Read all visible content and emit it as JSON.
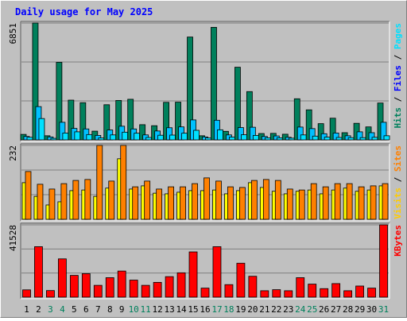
{
  "chart_data": {
    "type": "bar",
    "title": "Daily usage for May 2025",
    "categories": [
      "1",
      "2",
      "3",
      "4",
      "5",
      "6",
      "7",
      "8",
      "9",
      "10",
      "11",
      "12",
      "13",
      "14",
      "15",
      "16",
      "17",
      "18",
      "19",
      "20",
      "21",
      "22",
      "23",
      "24",
      "25",
      "26",
      "27",
      "28",
      "29",
      "30",
      "31"
    ],
    "weekend_days": [
      "3",
      "4",
      "10",
      "11",
      "17",
      "18",
      "24",
      "25",
      "31"
    ],
    "panels": [
      {
        "id": "top",
        "max_label": "6851",
        "ylim": [
          0,
          6851
        ],
        "axis_labels": [
          {
            "text": "Hits",
            "color": "#00805c"
          },
          {
            "text": "Files",
            "color": "#0000ff"
          },
          {
            "text": "Pages",
            "color": "#00e0ff"
          }
        ],
        "series": [
          {
            "name": "Hits",
            "color": "#00805c",
            "values": [
              320,
              6851,
              240,
              4550,
              2330,
              2180,
              510,
              2060,
              2310,
              2380,
              890,
              830,
              2200,
              2210,
              6030,
              240,
              6600,
              500,
              4260,
              2830,
              370,
              380,
              330,
              2410,
              1760,
              950,
              1270,
              420,
              970,
              760,
              2160
            ]
          },
          {
            "name": "Files",
            "color": "#00c0ff",
            "values": [
              200,
              1950,
              170,
              1030,
              670,
              640,
              260,
              580,
              800,
              640,
              290,
              520,
              710,
              760,
              1170,
              170,
              1150,
              290,
              720,
              740,
              200,
              230,
              150,
              750,
              660,
              360,
              400,
              240,
              470,
              420,
              1030
            ]
          },
          {
            "name": "Pages",
            "color": "#00e0ff",
            "values": [
              150,
              1250,
              90,
              400,
              470,
              310,
              110,
              290,
              450,
              390,
              140,
              270,
              280,
              390,
              560,
              110,
              590,
              160,
              300,
              260,
              120,
              120,
              100,
              290,
              220,
              160,
              140,
              130,
              130,
              150,
              240
            ]
          }
        ]
      },
      {
        "id": "middle",
        "max_label": "232",
        "ylim": [
          0,
          232
        ],
        "axis_labels": [
          {
            "text": "Visits",
            "color": "#ffcc00"
          },
          {
            "text": "Sites",
            "color": "#ff8000"
          }
        ],
        "series": [
          {
            "name": "Visits",
            "color": "#ffff00",
            "values": [
              115,
              72,
              45,
              55,
              90,
              92,
              72,
              98,
              190,
              95,
              105,
              82,
              80,
              85,
              90,
              90,
              92,
              80,
              90,
              115,
              100,
              88,
              80,
              88,
              92,
              80,
              92,
              98,
              88,
              92,
              105
            ]
          },
          {
            "name": "Sites",
            "color": "#ff8000",
            "values": [
              150,
              110,
              95,
              112,
              122,
              125,
              232,
              120,
              232,
              102,
              120,
              95,
              102,
              102,
              112,
              130,
              120,
              102,
              100,
              122,
              125,
              122,
              95,
              92,
              112,
              102,
              112,
              112,
              102,
              105,
              112
            ]
          }
        ]
      },
      {
        "id": "bottom",
        "max_label": "41528",
        "ylim": [
          0,
          41528
        ],
        "axis_labels": [
          {
            "text": "KBytes",
            "color": "#ff0000"
          }
        ],
        "series": [
          {
            "name": "KBytes",
            "color": "#ff0000",
            "values": [
              4200,
              29000,
              3800,
              22000,
              12500,
              13500,
              6800,
              11200,
              15000,
              9800,
              6800,
              8500,
              11800,
              14000,
              26000,
              5200,
              29000,
              7200,
              19500,
              12000,
              3700,
              4300,
              3700,
              11200,
              7500,
              4900,
              7800,
              3700,
              6400,
              5200,
              41528
            ]
          }
        ]
      }
    ]
  }
}
